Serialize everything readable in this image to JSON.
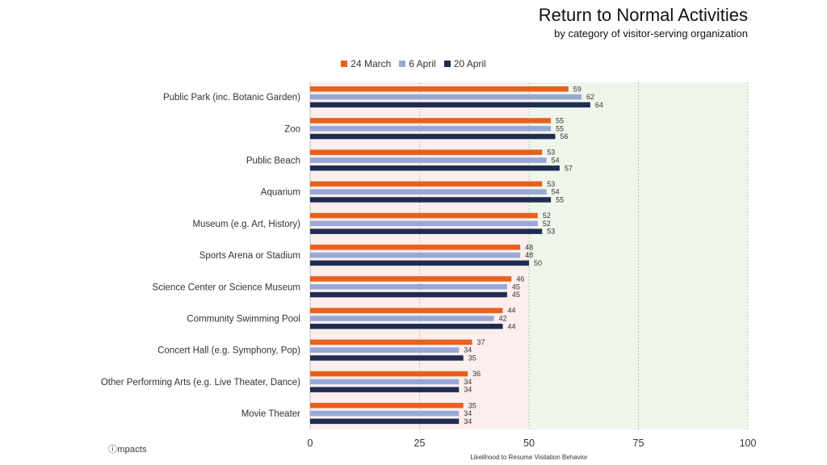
{
  "chart_data": {
    "type": "bar",
    "orientation": "horizontal",
    "title": "Return to Normal Activities",
    "subtitle": "by category of visitor-serving organization",
    "xlabel": "Likelihood to Resume Visitation Behavior",
    "ylabel": "",
    "xlim": [
      0,
      100
    ],
    "xticks": [
      0,
      25,
      50,
      75,
      100
    ],
    "bands": [
      {
        "from": 0,
        "to": 50,
        "color": "#fdeeee"
      },
      {
        "from": 50,
        "to": 100,
        "color": "#eef5ea"
      }
    ],
    "legend_position": "top-center",
    "categories": [
      "Public Park (inc. Botanic Garden)",
      "Zoo",
      "Public Beach",
      "Aquarium",
      "Museum (e.g. Art, History)",
      "Sports Arena or Stadium",
      "Science Center or Science Museum",
      "Community Swimming Pool",
      "Concert Hall (e.g. Symphony, Pop)",
      "Other Performing Arts (e.g. Live Theater, Dance)",
      "Movie Theater"
    ],
    "series": [
      {
        "name": "24 March",
        "color": "#e8601c",
        "values": [
          59,
          55,
          53,
          53,
          52,
          48,
          46,
          44,
          37,
          36,
          35
        ]
      },
      {
        "name": "6 April",
        "color": "#97a8d6",
        "values": [
          62,
          55,
          54,
          54,
          52,
          48,
          45,
          42,
          34,
          34,
          34
        ]
      },
      {
        "name": "20 April",
        "color": "#1f2c52",
        "values": [
          64,
          56,
          57,
          55,
          53,
          50,
          45,
          44,
          35,
          34,
          34
        ]
      }
    ]
  },
  "branding": {
    "logo_mark": "ⓘ",
    "logo_text": "mpacts"
  }
}
